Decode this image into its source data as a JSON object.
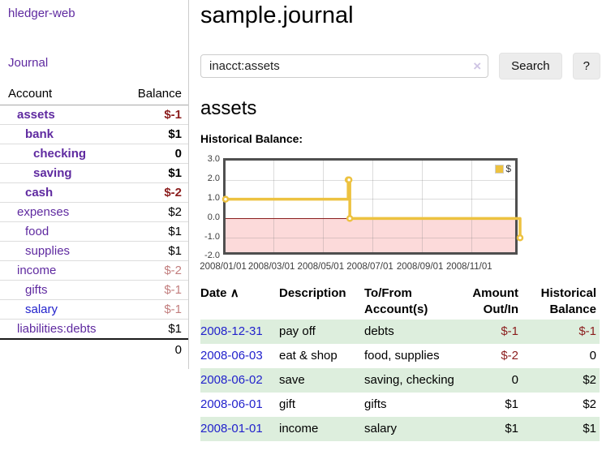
{
  "app": {
    "title": "hledger-web",
    "nav_journal": "Journal"
  },
  "sidebar": {
    "headers": {
      "account": "Account",
      "balance": "Balance"
    },
    "accounts": [
      {
        "name": "assets",
        "depth": 0,
        "matched": true,
        "balance": "$-1",
        "negative": "strong"
      },
      {
        "name": "bank",
        "depth": 1,
        "matched": true,
        "balance": "$1"
      },
      {
        "name": "checking",
        "depth": 2,
        "matched": true,
        "balance": "0"
      },
      {
        "name": "saving",
        "depth": 2,
        "matched": true,
        "balance": "$1"
      },
      {
        "name": "cash",
        "depth": 1,
        "matched": true,
        "balance": "$-2",
        "negative": "strong"
      },
      {
        "name": "expenses",
        "depth": 0,
        "matched": false,
        "balance": "$2"
      },
      {
        "name": "food",
        "depth": 1,
        "matched": false,
        "balance": "$1"
      },
      {
        "name": "supplies",
        "depth": 1,
        "matched": false,
        "balance": "$1"
      },
      {
        "name": "income",
        "depth": 0,
        "matched": false,
        "balance": "$-2",
        "negative": "soft"
      },
      {
        "name": "gifts",
        "depth": 1,
        "matched": false,
        "balance": "$-1",
        "negative": "soft"
      },
      {
        "name": "salary",
        "depth": 1,
        "matched": false,
        "balance": "$-1",
        "negative": "soft",
        "fresh_link": true
      },
      {
        "name": "liabilities:debts",
        "depth": 0,
        "matched": false,
        "balance": "$1"
      }
    ],
    "total": "0"
  },
  "main": {
    "title": "sample.journal",
    "search": {
      "value": "inacct:assets",
      "clear_icon": "×",
      "button_label": "Search",
      "help_label": "?"
    },
    "account_heading": "assets",
    "chart_label": "Historical Balance:"
  },
  "chart_data": {
    "type": "line",
    "mode": "steps",
    "title": "Historical Balance",
    "series": [
      {
        "name": "$",
        "color": "#edc240",
        "points": [
          {
            "x": "2008-01-01",
            "y": 1
          },
          {
            "x": "2008-06-01",
            "y": 2
          },
          {
            "x": "2008-06-02",
            "y": 2
          },
          {
            "x": "2008-06-03",
            "y": 0
          },
          {
            "x": "2008-12-31",
            "y": -1
          }
        ]
      }
    ],
    "xrange": [
      "2008-01-01",
      "2008-12-31"
    ],
    "ylim": [
      -2,
      3
    ],
    "yticks": [
      3,
      2,
      1,
      0,
      -1,
      -2
    ],
    "ytick_labels": [
      "3.0",
      "2.0",
      "1.0",
      "0.0",
      "-1.0",
      "-2.0"
    ],
    "xticks": [
      "2008-01-01",
      "2008-03-01",
      "2008-05-01",
      "2008-07-01",
      "2008-09-01",
      "2008-11-01"
    ],
    "xtick_labels": [
      "2008/01/01",
      "2008/03/01",
      "2008/05/01",
      "2008/07/01",
      "2008/09/01",
      "2008/11/01"
    ],
    "grid": true,
    "grid_color": "#d9d9d9",
    "border_color": "#4f4f4f",
    "negative_region_fill": "#fcdada",
    "zero_line_color": "#8b2020",
    "legend": {
      "position": "top-right",
      "label": "$",
      "swatch_color": "#edc240"
    }
  },
  "register": {
    "sort_icon": "∧",
    "headers": {
      "date": "Date",
      "description": "Description",
      "accounts": "To/From Account(s)",
      "amount": "Amount Out/In",
      "balance": "Historical Balance"
    },
    "rows": [
      {
        "date": "2008-12-31",
        "description": "pay off",
        "accounts": "debts",
        "amount": "$-1",
        "amount_negative": true,
        "balance": "$-1",
        "balance_negative": true
      },
      {
        "date": "2008-06-03",
        "description": "eat & shop",
        "accounts": "food, supplies",
        "amount": "$-2",
        "amount_negative": true,
        "balance": "0"
      },
      {
        "date": "2008-06-02",
        "description": "save",
        "accounts": "saving, checking",
        "amount": "0",
        "balance": "$2"
      },
      {
        "date": "2008-06-01",
        "description": "gift",
        "accounts": "gifts",
        "amount": "$1",
        "balance": "$2"
      },
      {
        "date": "2008-01-01",
        "description": "income",
        "accounts": "salary",
        "amount": "$1",
        "balance": "$1"
      }
    ]
  }
}
